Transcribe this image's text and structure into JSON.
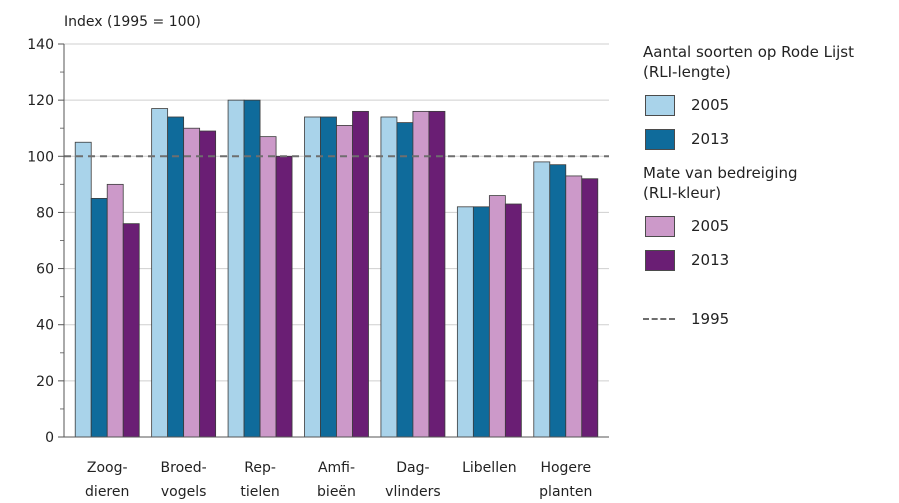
{
  "chart_data": {
    "type": "bar",
    "ylabel": "Index (1995 = 100)",
    "ylim": [
      0,
      140
    ],
    "yticks": [
      0,
      20,
      40,
      60,
      80,
      100,
      120,
      140
    ],
    "grid": true,
    "reference_line": {
      "value": 100,
      "label": "1995",
      "style": "dashed"
    },
    "categories": [
      [
        "Zoog-",
        "dieren"
      ],
      [
        "Broed-",
        "vogels"
      ],
      [
        "Rep-",
        "tielen"
      ],
      [
        "Amfi-",
        "bieën"
      ],
      [
        "Dag-",
        "vlinders"
      ],
      [
        "Libellen"
      ],
      [
        "Hogere",
        "planten"
      ]
    ],
    "legend_groups": [
      {
        "title_line1": "Aantal soorten op Rode Lijst",
        "title_line2": "(RLI-lengte)"
      },
      {
        "title_line1": "Mate van bedreiging",
        "title_line2": "(RLI-kleur)"
      }
    ],
    "legend_placement": "right",
    "series": [
      {
        "name": "2005",
        "group": 0,
        "color": "#a9d3ea",
        "values": [
          105,
          117,
          120,
          114,
          114,
          82,
          98
        ]
      },
      {
        "name": "2013",
        "group": 0,
        "color": "#0f6b9b",
        "values": [
          85,
          114,
          120,
          114,
          112,
          82,
          97
        ]
      },
      {
        "name": "2005",
        "group": 1,
        "color": "#cc99c9",
        "values": [
          90,
          110,
          107,
          111,
          116,
          86,
          93
        ]
      },
      {
        "name": "2013",
        "group": 1,
        "color": "#6a1e74",
        "values": [
          76,
          109,
          100,
          116,
          116,
          83,
          92
        ]
      }
    ]
  }
}
